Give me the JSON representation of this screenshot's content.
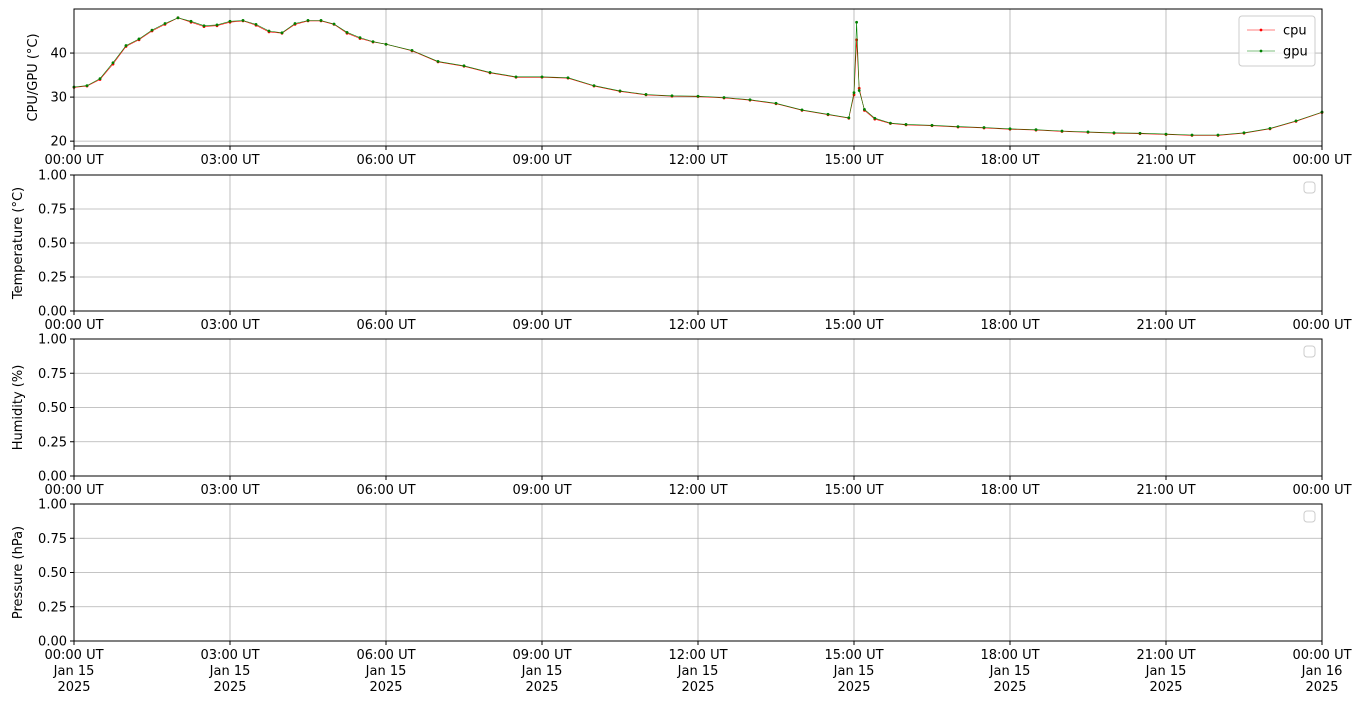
{
  "chart_data": [
    {
      "type": "line",
      "ylabel": "CPU/GPU (°C)",
      "xlim": [
        0,
        24
      ],
      "ylim": [
        18.9,
        50
      ],
      "yticks": [
        20,
        30,
        40
      ],
      "xticks": [
        {
          "value": 0,
          "label": "00:00 UT"
        },
        {
          "value": 3,
          "label": "03:00 UT"
        },
        {
          "value": 6,
          "label": "06:00 UT"
        },
        {
          "value": 9,
          "label": "09:00 UT"
        },
        {
          "value": 12,
          "label": "12:00 UT"
        },
        {
          "value": 15,
          "label": "15:00 UT"
        },
        {
          "value": 18,
          "label": "18:00 UT"
        },
        {
          "value": 21,
          "label": "21:00 UT"
        },
        {
          "value": 24,
          "label": "00:00 UT"
        }
      ],
      "grid": true,
      "legend": "upper right",
      "x": [
        0,
        0.25,
        0.5,
        0.75,
        1,
        1.25,
        1.5,
        1.75,
        2,
        2.25,
        2.5,
        2.75,
        3,
        3.25,
        3.5,
        3.75,
        4,
        4.25,
        4.5,
        4.75,
        5,
        5.25,
        5.5,
        5.75,
        6,
        6.5,
        7,
        7.5,
        8,
        8.5,
        9,
        9.5,
        10,
        10.5,
        11,
        11.5,
        12,
        12.5,
        13,
        13.5,
        14,
        14.5,
        14.9,
        15,
        15.05,
        15.1,
        15.2,
        15.4,
        15.7,
        16,
        16.5,
        17,
        17.5,
        18,
        18.5,
        19,
        19.5,
        20,
        20.5,
        21,
        21.5,
        22,
        22.5,
        23,
        23.5,
        24
      ],
      "series": [
        {
          "name": "cpu",
          "color": "#ff0000",
          "values": [
            32.2,
            32.5,
            34,
            37.5,
            41.5,
            43,
            45,
            46.5,
            48,
            47,
            46,
            46.2,
            47,
            47.3,
            46.3,
            44.8,
            44.5,
            46.5,
            47.3,
            47.3,
            46.5,
            44.5,
            43.3,
            42.5,
            42,
            40.5,
            38,
            37,
            35.5,
            34.5,
            34.5,
            34.3,
            32.5,
            31.3,
            30.5,
            30.2,
            30.1,
            29.8,
            29.3,
            28.5,
            27,
            26,
            25.2,
            30.5,
            43,
            32,
            27,
            25,
            24,
            23.7,
            23.5,
            23.2,
            23,
            22.7,
            22.5,
            22.2,
            22,
            21.8,
            21.7,
            21.5,
            21.3,
            21.3,
            21.8,
            22.8,
            24.5,
            26.5
          ]
        },
        {
          "name": "gpu",
          "color": "#008000",
          "values": [
            32.3,
            32.6,
            34.2,
            37.8,
            41.7,
            43.2,
            45.2,
            46.7,
            48,
            47.2,
            46.2,
            46.4,
            47.2,
            47.4,
            46.5,
            45,
            44.6,
            46.7,
            47.4,
            47.4,
            46.6,
            44.7,
            43.5,
            42.6,
            42,
            40.6,
            38.1,
            37.1,
            35.6,
            34.6,
            34.6,
            34.4,
            32.6,
            31.4,
            30.6,
            30.3,
            30.2,
            29.9,
            29.4,
            28.6,
            27.1,
            26.1,
            25.3,
            31,
            47,
            31.5,
            27.2,
            25.2,
            24.1,
            23.8,
            23.6,
            23.3,
            23.1,
            22.8,
            22.6,
            22.3,
            22.1,
            21.9,
            21.8,
            21.6,
            21.4,
            21.4,
            21.9,
            22.9,
            24.6,
            26.6
          ]
        }
      ]
    },
    {
      "type": "line",
      "ylabel": "Temperature (°C)",
      "xlim": [
        0,
        24
      ],
      "ylim": [
        0,
        1
      ],
      "yticks": [
        {
          "value": 0,
          "label": "0.00"
        },
        {
          "value": 0.25,
          "label": "0.25"
        },
        {
          "value": 0.5,
          "label": "0.50"
        },
        {
          "value": 0.75,
          "label": "0.75"
        },
        {
          "value": 1,
          "label": "1.00"
        }
      ],
      "xticks": [
        {
          "value": 0,
          "label": "00:00 UT"
        },
        {
          "value": 3,
          "label": "03:00 UT"
        },
        {
          "value": 6,
          "label": "06:00 UT"
        },
        {
          "value": 9,
          "label": "09:00 UT"
        },
        {
          "value": 12,
          "label": "12:00 UT"
        },
        {
          "value": 15,
          "label": "15:00 UT"
        },
        {
          "value": 18,
          "label": "18:00 UT"
        },
        {
          "value": 21,
          "label": "21:00 UT"
        },
        {
          "value": 24,
          "label": "00:00 UT"
        }
      ],
      "grid": true,
      "legend": "upper right",
      "x": [],
      "series": []
    },
    {
      "type": "line",
      "ylabel": "Humidity (%)",
      "xlim": [
        0,
        24
      ],
      "ylim": [
        0,
        1
      ],
      "yticks": [
        {
          "value": 0,
          "label": "0.00"
        },
        {
          "value": 0.25,
          "label": "0.25"
        },
        {
          "value": 0.5,
          "label": "0.50"
        },
        {
          "value": 0.75,
          "label": "0.75"
        },
        {
          "value": 1,
          "label": "1.00"
        }
      ],
      "xticks": [
        {
          "value": 0,
          "label": "00:00 UT"
        },
        {
          "value": 3,
          "label": "03:00 UT"
        },
        {
          "value": 6,
          "label": "06:00 UT"
        },
        {
          "value": 9,
          "label": "09:00 UT"
        },
        {
          "value": 12,
          "label": "12:00 UT"
        },
        {
          "value": 15,
          "label": "15:00 UT"
        },
        {
          "value": 18,
          "label": "18:00 UT"
        },
        {
          "value": 21,
          "label": "21:00 UT"
        },
        {
          "value": 24,
          "label": "00:00 UT"
        }
      ],
      "grid": true,
      "legend": "upper right",
      "x": [],
      "series": []
    },
    {
      "type": "line",
      "ylabel": "Pressure (hPa)",
      "xlim": [
        0,
        24
      ],
      "ylim": [
        0,
        1
      ],
      "yticks": [
        {
          "value": 0,
          "label": "0.00"
        },
        {
          "value": 0.25,
          "label": "0.25"
        },
        {
          "value": 0.5,
          "label": "0.50"
        },
        {
          "value": 0.75,
          "label": "0.75"
        },
        {
          "value": 1,
          "label": "1.00"
        }
      ],
      "xticks": [
        {
          "value": 0,
          "label": "00:00 UT\nJan 15\n2025"
        },
        {
          "value": 3,
          "label": "03:00 UT\nJan 15\n2025"
        },
        {
          "value": 6,
          "label": "06:00 UT\nJan 15\n2025"
        },
        {
          "value": 9,
          "label": "09:00 UT\nJan 15\n2025"
        },
        {
          "value": 12,
          "label": "12:00 UT\nJan 15\n2025"
        },
        {
          "value": 15,
          "label": "15:00 UT\nJan 15\n2025"
        },
        {
          "value": 18,
          "label": "18:00 UT\nJan 15\n2025"
        },
        {
          "value": 21,
          "label": "21:00 UT\nJan 15\n2025"
        },
        {
          "value": 24,
          "label": "00:00 UT\nJan 16\n2025"
        }
      ],
      "grid": true,
      "legend": "upper right",
      "x": [],
      "series": []
    }
  ]
}
